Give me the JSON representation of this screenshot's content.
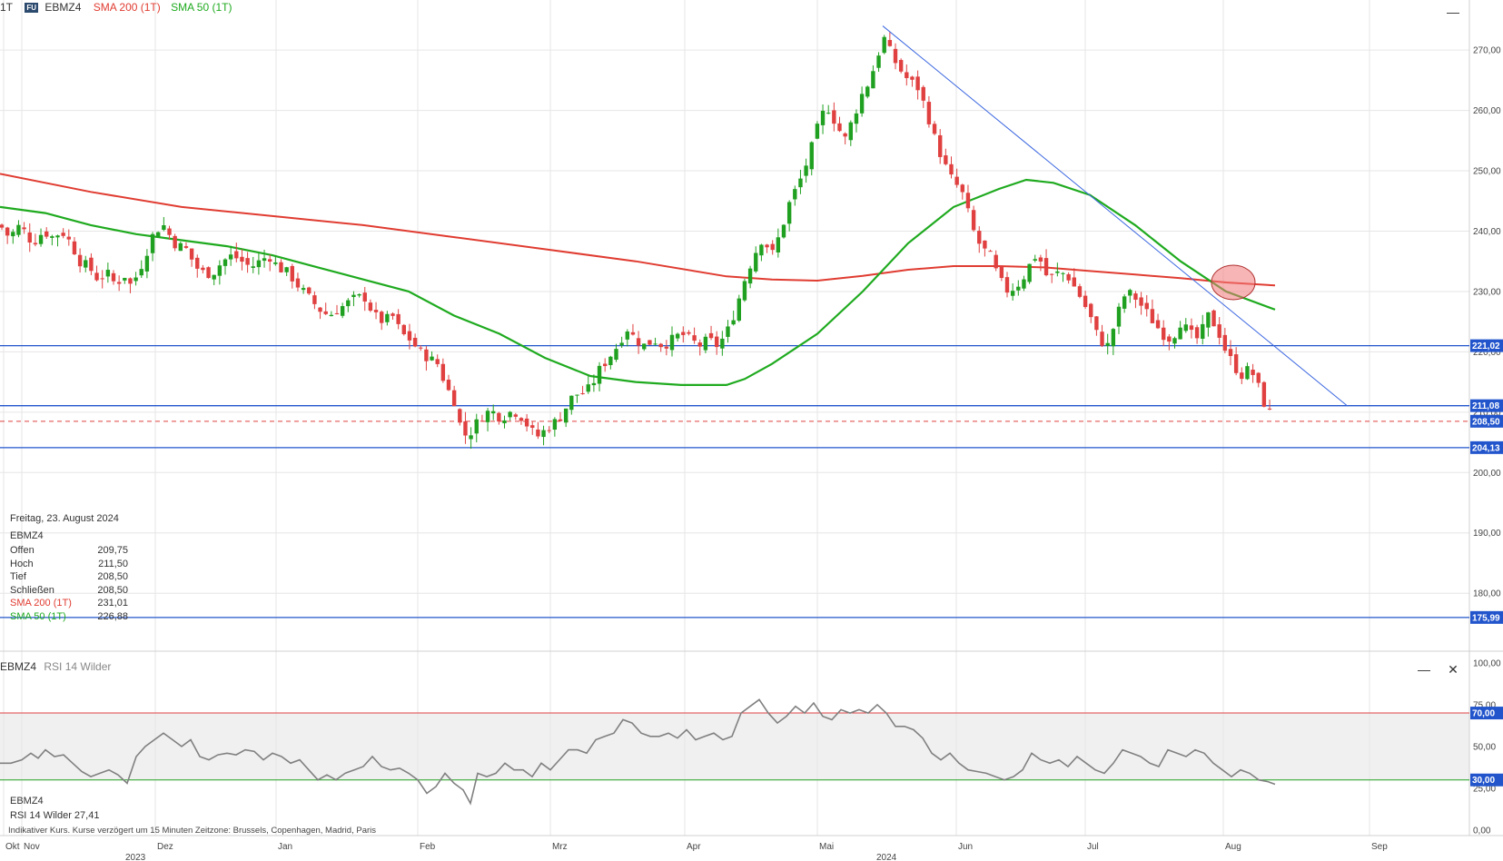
{
  "header": {
    "interval": "1T",
    "symbol": "EBMZ4",
    "sma200_label": "SMA 200 (1T)",
    "sma50_label": "SMA 50 (1T)",
    "fu_badge": "FU"
  },
  "colors": {
    "up": "#20a020",
    "down": "#e04040",
    "sma200": "#e03c31",
    "sma50": "#1faa1f",
    "hline": "#2255cc",
    "trend": "#3a66e0",
    "rsi": "#808080",
    "rsi_upper": "#e04040",
    "rsi_lower": "#20a020"
  },
  "info_panel": {
    "date": "Freitag, 23. August 2024",
    "symbol": "EBMZ4",
    "rows": [
      {
        "label": "Offen",
        "value": "209,75"
      },
      {
        "label": "Hoch",
        "value": "211,50"
      },
      {
        "label": "Tief",
        "value": "208,50"
      },
      {
        "label": "Schließen",
        "value": "208,50"
      },
      {
        "label": "SMA 200 (1T)",
        "value": "231,01"
      },
      {
        "label": "SMA 50 (1T)",
        "value": "226,88"
      }
    ]
  },
  "rsi_panel": {
    "title_symbol": "EBMZ4",
    "title_indicator": "RSI 14 Wilder",
    "legend_symbol": "EBMZ4",
    "legend_label": "RSI 14 Wilder",
    "legend_value": "27,41"
  },
  "footer": "Indikativer Kurs. Kurse verzögert um 15 Minuten    Zeitzone: Brussels, Copenhagen, Madrid, Paris",
  "chart_data": [
    {
      "type": "candlestick",
      "symbol": "EBMZ4",
      "y_axis": {
        "range": [
          171,
          278
        ],
        "ticks": [
          "180,00",
          "190,00",
          "200,00",
          "210,00",
          "220,00",
          "230,00",
          "240,00",
          "250,00",
          "260,00",
          "270,00"
        ]
      },
      "x_axis": {
        "months": [
          "Okt",
          "Nov",
          "Dez",
          "Jan",
          "Feb",
          "Mrz",
          "Apr",
          "Mai",
          "Jun",
          "Jul",
          "Aug",
          "Sep"
        ],
        "years": [
          "2023",
          "2024"
        ]
      },
      "horizontal_lines": [
        "221,02",
        "211,08",
        "204,13",
        "175,99"
      ],
      "last_close_line": "208,50",
      "price_path": [
        [
          0,
          241
        ],
        [
          10,
          239
        ],
        [
          22,
          241
        ],
        [
          36,
          238
        ],
        [
          48,
          240
        ],
        [
          58,
          239
        ],
        [
          68,
          240
        ],
        [
          78,
          238
        ],
        [
          88,
          235
        ],
        [
          98,
          234
        ],
        [
          108,
          232
        ],
        [
          118,
          233
        ],
        [
          128,
          231
        ],
        [
          136,
          233
        ],
        [
          144,
          231
        ],
        [
          152,
          233
        ],
        [
          160,
          236
        ],
        [
          170,
          240
        ],
        [
          180,
          241
        ],
        [
          192,
          238
        ],
        [
          205,
          237
        ],
        [
          216,
          234
        ],
        [
          225,
          233
        ],
        [
          234,
          233
        ],
        [
          245,
          235
        ],
        [
          256,
          236
        ],
        [
          266,
          235
        ],
        [
          276,
          234
        ],
        [
          286,
          235
        ],
        [
          296,
          236
        ],
        [
          306,
          234
        ],
        [
          318,
          233
        ],
        [
          328,
          231
        ],
        [
          340,
          229
        ],
        [
          352,
          227
        ],
        [
          362,
          226
        ],
        [
          372,
          227
        ],
        [
          382,
          228
        ],
        [
          392,
          229
        ],
        [
          402,
          229
        ],
        [
          412,
          226
        ],
        [
          422,
          225
        ],
        [
          432,
          226
        ],
        [
          442,
          223
        ],
        [
          452,
          222
        ],
        [
          462,
          220
        ],
        [
          472,
          219
        ],
        [
          482,
          218
        ],
        [
          492,
          214
        ],
        [
          500,
          212
        ],
        [
          508,
          207
        ],
        [
          514,
          206
        ],
        [
          520,
          207
        ],
        [
          528,
          209
        ],
        [
          536,
          210
        ],
        [
          544,
          210
        ],
        [
          552,
          209
        ],
        [
          560,
          210
        ],
        [
          568,
          210
        ],
        [
          576,
          209
        ],
        [
          584,
          207
        ],
        [
          592,
          206
        ],
        [
          600,
          207
        ],
        [
          608,
          208
        ],
        [
          616,
          209
        ],
        [
          624,
          211
        ],
        [
          632,
          213
        ],
        [
          640,
          213
        ],
        [
          650,
          214
        ],
        [
          660,
          217
        ],
        [
          670,
          219
        ],
        [
          680,
          221
        ],
        [
          690,
          224
        ],
        [
          700,
          222
        ],
        [
          710,
          221
        ],
        [
          720,
          222
        ],
        [
          730,
          221
        ],
        [
          740,
          222
        ],
        [
          750,
          223
        ],
        [
          760,
          222
        ],
        [
          770,
          221
        ],
        [
          780,
          222
        ],
        [
          790,
          221
        ],
        [
          800,
          223
        ],
        [
          810,
          227
        ],
        [
          820,
          232
        ],
        [
          830,
          236
        ],
        [
          840,
          239
        ],
        [
          850,
          236
        ],
        [
          860,
          240
        ],
        [
          870,
          245
        ],
        [
          880,
          248
        ],
        [
          890,
          252
        ],
        [
          900,
          257
        ],
        [
          910,
          261
        ],
        [
          920,
          258
        ],
        [
          930,
          255
        ],
        [
          940,
          259
        ],
        [
          950,
          263
        ],
        [
          958,
          265
        ],
        [
          966,
          269
        ],
        [
          974,
          272
        ],
        [
          982,
          269
        ],
        [
          990,
          267
        ],
        [
          1000,
          265
        ],
        [
          1010,
          264
        ],
        [
          1020,
          260
        ],
        [
          1030,
          255
        ],
        [
          1040,
          251
        ],
        [
          1050,
          248
        ],
        [
          1058,
          247
        ],
        [
          1066,
          243
        ],
        [
          1074,
          239
        ],
        [
          1082,
          237
        ],
        [
          1090,
          236
        ],
        [
          1100,
          232
        ],
        [
          1110,
          230
        ],
        [
          1120,
          231
        ],
        [
          1130,
          233
        ],
        [
          1138,
          236
        ],
        [
          1146,
          235
        ],
        [
          1154,
          232
        ],
        [
          1164,
          233
        ],
        [
          1174,
          233
        ],
        [
          1182,
          231
        ],
        [
          1190,
          229
        ],
        [
          1200,
          226
        ],
        [
          1210,
          222
        ],
        [
          1220,
          221
        ],
        [
          1230,
          226
        ],
        [
          1240,
          230
        ],
        [
          1250,
          229
        ],
        [
          1260,
          227
        ],
        [
          1270,
          225
        ],
        [
          1280,
          223
        ],
        [
          1290,
          222
        ],
        [
          1300,
          225
        ],
        [
          1310,
          223
        ],
        [
          1320,
          222
        ],
        [
          1330,
          226
        ],
        [
          1340,
          224
        ],
        [
          1350,
          220
        ],
        [
          1358,
          218
        ],
        [
          1366,
          216
        ],
        [
          1374,
          217
        ],
        [
          1382,
          216
        ],
        [
          1390,
          212
        ],
        [
          1398,
          210
        ],
        [
          1404,
          208.5
        ]
      ],
      "sma200_path": [
        [
          0,
          249.5
        ],
        [
          100,
          246.5
        ],
        [
          200,
          244
        ],
        [
          300,
          242.5
        ],
        [
          400,
          241
        ],
        [
          500,
          239
        ],
        [
          600,
          237
        ],
        [
          700,
          235
        ],
        [
          800,
          232.5
        ],
        [
          850,
          232
        ],
        [
          900,
          231.8
        ],
        [
          950,
          232.6
        ],
        [
          1000,
          233.6
        ],
        [
          1050,
          234.2
        ],
        [
          1100,
          234.2
        ],
        [
          1150,
          234
        ],
        [
          1200,
          233.4
        ],
        [
          1250,
          232.8
        ],
        [
          1300,
          232.2
        ],
        [
          1350,
          231.5
        ],
        [
          1404,
          231
        ]
      ],
      "sma50_path": [
        [
          0,
          244
        ],
        [
          50,
          243
        ],
        [
          100,
          241
        ],
        [
          150,
          239.5
        ],
        [
          200,
          238.5
        ],
        [
          250,
          237.5
        ],
        [
          300,
          236
        ],
        [
          350,
          234
        ],
        [
          400,
          232
        ],
        [
          450,
          230
        ],
        [
          500,
          226
        ],
        [
          550,
          223
        ],
        [
          600,
          219
        ],
        [
          650,
          216
        ],
        [
          700,
          215
        ],
        [
          750,
          214.5
        ],
        [
          800,
          214.5
        ],
        [
          820,
          215.5
        ],
        [
          850,
          218
        ],
        [
          900,
          223
        ],
        [
          950,
          230
        ],
        [
          1000,
          238
        ],
        [
          1050,
          244
        ],
        [
          1100,
          247
        ],
        [
          1130,
          248.5
        ],
        [
          1160,
          248
        ],
        [
          1200,
          246
        ],
        [
          1250,
          241
        ],
        [
          1300,
          235
        ],
        [
          1350,
          230
        ],
        [
          1404,
          227
        ]
      ],
      "trendline": [
        [
          972,
          274
        ],
        [
          1484,
          211
        ]
      ],
      "highlight_circle": {
        "x": 1358,
        "y": 231.5
      }
    },
    {
      "type": "line",
      "name": "RSI 14 Wilder",
      "y_axis": {
        "range": [
          0,
          100
        ],
        "ticks": [
          "0,00",
          "25,00",
          "50,00",
          "75,00",
          "100,00"
        ]
      },
      "levels": [
        "70,00",
        "30,00"
      ],
      "last_value": "27,41",
      "values": [
        [
          0,
          40
        ],
        [
          12,
          40
        ],
        [
          24,
          42
        ],
        [
          34,
          46
        ],
        [
          42,
          43
        ],
        [
          50,
          48
        ],
        [
          60,
          44
        ],
        [
          70,
          45
        ],
        [
          80,
          40
        ],
        [
          90,
          35
        ],
        [
          100,
          32
        ],
        [
          110,
          34
        ],
        [
          120,
          36
        ],
        [
          130,
          33
        ],
        [
          140,
          28
        ],
        [
          150,
          44
        ],
        [
          160,
          50
        ],
        [
          170,
          54
        ],
        [
          180,
          58
        ],
        [
          190,
          54
        ],
        [
          200,
          50
        ],
        [
          210,
          54
        ],
        [
          220,
          44
        ],
        [
          230,
          42
        ],
        [
          240,
          45
        ],
        [
          250,
          46
        ],
        [
          260,
          45
        ],
        [
          270,
          48
        ],
        [
          280,
          47
        ],
        [
          290,
          42
        ],
        [
          300,
          46
        ],
        [
          310,
          44
        ],
        [
          320,
          40
        ],
        [
          330,
          42
        ],
        [
          340,
          36
        ],
        [
          350,
          30
        ],
        [
          360,
          33
        ],
        [
          370,
          30
        ],
        [
          380,
          34
        ],
        [
          390,
          36
        ],
        [
          400,
          38
        ],
        [
          410,
          44
        ],
        [
          420,
          38
        ],
        [
          430,
          36
        ],
        [
          440,
          37
        ],
        [
          450,
          34
        ],
        [
          460,
          30
        ],
        [
          470,
          22
        ],
        [
          480,
          26
        ],
        [
          490,
          34
        ],
        [
          500,
          28
        ],
        [
          510,
          24
        ],
        [
          518,
          16
        ],
        [
          526,
          34
        ],
        [
          536,
          32
        ],
        [
          546,
          34
        ],
        [
          556,
          40
        ],
        [
          566,
          36
        ],
        [
          576,
          36
        ],
        [
          586,
          32
        ],
        [
          596,
          40
        ],
        [
          606,
          36
        ],
        [
          616,
          42
        ],
        [
          626,
          48
        ],
        [
          636,
          48
        ],
        [
          646,
          46
        ],
        [
          656,
          54
        ],
        [
          666,
          56
        ],
        [
          676,
          58
        ],
        [
          686,
          66
        ],
        [
          696,
          64
        ],
        [
          706,
          58
        ],
        [
          716,
          56
        ],
        [
          726,
          56
        ],
        [
          736,
          58
        ],
        [
          746,
          55
        ],
        [
          756,
          60
        ],
        [
          766,
          54
        ],
        [
          776,
          56
        ],
        [
          786,
          58
        ],
        [
          796,
          54
        ],
        [
          806,
          56
        ],
        [
          816,
          70
        ],
        [
          826,
          74
        ],
        [
          836,
          78
        ],
        [
          846,
          70
        ],
        [
          856,
          64
        ],
        [
          866,
          68
        ],
        [
          876,
          74
        ],
        [
          886,
          70
        ],
        [
          896,
          76
        ],
        [
          906,
          68
        ],
        [
          916,
          66
        ],
        [
          926,
          72
        ],
        [
          936,
          70
        ],
        [
          946,
          72
        ],
        [
          956,
          70
        ],
        [
          966,
          75
        ],
        [
          976,
          70
        ],
        [
          986,
          62
        ],
        [
          996,
          62
        ],
        [
          1006,
          60
        ],
        [
          1016,
          55
        ],
        [
          1026,
          46
        ],
        [
          1036,
          42
        ],
        [
          1046,
          46
        ],
        [
          1056,
          40
        ],
        [
          1066,
          36
        ],
        [
          1076,
          35
        ],
        [
          1086,
          34
        ],
        [
          1096,
          32
        ],
        [
          1106,
          30
        ],
        [
          1116,
          32
        ],
        [
          1126,
          36
        ],
        [
          1136,
          46
        ],
        [
          1146,
          42
        ],
        [
          1156,
          40
        ],
        [
          1166,
          42
        ],
        [
          1176,
          38
        ],
        [
          1186,
          44
        ],
        [
          1196,
          40
        ],
        [
          1206,
          36
        ],
        [
          1216,
          34
        ],
        [
          1226,
          40
        ],
        [
          1236,
          48
        ],
        [
          1246,
          46
        ],
        [
          1256,
          44
        ],
        [
          1266,
          40
        ],
        [
          1276,
          38
        ],
        [
          1286,
          48
        ],
        [
          1296,
          46
        ],
        [
          1306,
          44
        ],
        [
          1316,
          48
        ],
        [
          1326,
          46
        ],
        [
          1336,
          40
        ],
        [
          1346,
          36
        ],
        [
          1356,
          32
        ],
        [
          1366,
          36
        ],
        [
          1376,
          34
        ],
        [
          1386,
          30
        ],
        [
          1396,
          29
        ],
        [
          1404,
          27.41
        ]
      ]
    }
  ]
}
